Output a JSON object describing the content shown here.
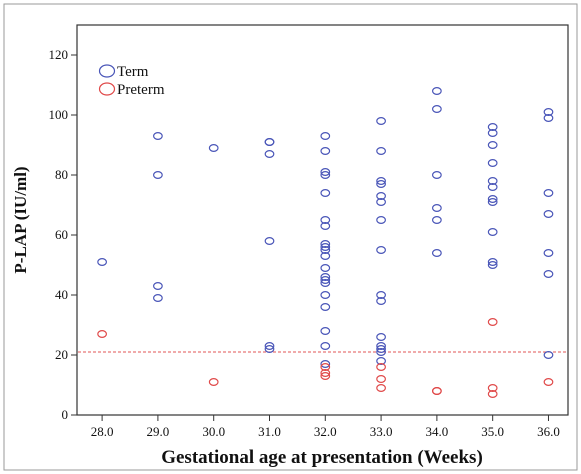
{
  "chart_data": {
    "type": "scatter",
    "title": "",
    "xlabel": "Gestational age at presentation (Weeks)",
    "ylabel": "P-LAP (IU/ml)",
    "x_ticks": [
      "28.0",
      "29.0",
      "30.0",
      "31.0",
      "32.0",
      "33.0",
      "34.0",
      "35.0",
      "36.0"
    ],
    "y_ticks": [
      "0",
      "20",
      "40",
      "60",
      "80",
      "100",
      "120"
    ],
    "xlim": [
      27.55,
      36.35
    ],
    "ylim": [
      0,
      130
    ],
    "grid": false,
    "legend_position": "top-left",
    "reference_line": {
      "y": 21,
      "color": "#e05555",
      "style": "dashed"
    },
    "series": [
      {
        "name": "Term",
        "color": "#4a56b8",
        "points": [
          [
            28,
            51
          ],
          [
            29,
            93
          ],
          [
            29,
            80
          ],
          [
            29,
            43
          ],
          [
            29,
            39
          ],
          [
            30,
            89
          ],
          [
            31,
            91
          ],
          [
            31,
            91
          ],
          [
            31,
            87
          ],
          [
            31,
            58
          ],
          [
            31,
            23
          ],
          [
            31,
            22
          ],
          [
            32,
            93
          ],
          [
            32,
            88
          ],
          [
            32,
            81
          ],
          [
            32,
            80
          ],
          [
            32,
            74
          ],
          [
            32,
            65
          ],
          [
            32,
            63
          ],
          [
            32,
            57
          ],
          [
            32,
            56
          ],
          [
            32,
            55
          ],
          [
            32,
            53
          ],
          [
            32,
            49
          ],
          [
            32,
            46
          ],
          [
            32,
            45
          ],
          [
            32,
            44
          ],
          [
            32,
            40
          ],
          [
            32,
            36
          ],
          [
            32,
            28
          ],
          [
            32,
            23
          ],
          [
            32,
            17
          ],
          [
            33,
            98
          ],
          [
            33,
            88
          ],
          [
            33,
            78
          ],
          [
            33,
            77
          ],
          [
            33,
            73
          ],
          [
            33,
            71
          ],
          [
            33,
            65
          ],
          [
            33,
            55
          ],
          [
            33,
            40
          ],
          [
            33,
            38
          ],
          [
            33,
            26
          ],
          [
            33,
            23
          ],
          [
            33,
            22
          ],
          [
            33,
            21
          ],
          [
            33,
            18
          ],
          [
            34,
            108
          ],
          [
            34,
            102
          ],
          [
            34,
            80
          ],
          [
            34,
            69
          ],
          [
            34,
            65
          ],
          [
            34,
            54
          ],
          [
            35,
            96
          ],
          [
            35,
            94
          ],
          [
            35,
            90
          ],
          [
            35,
            84
          ],
          [
            35,
            78
          ],
          [
            35,
            76
          ],
          [
            35,
            72
          ],
          [
            35,
            71
          ],
          [
            35,
            61
          ],
          [
            35,
            51
          ],
          [
            35,
            50
          ],
          [
            36,
            101
          ],
          [
            36,
            99
          ],
          [
            36,
            74
          ],
          [
            36,
            67
          ],
          [
            36,
            54
          ],
          [
            36,
            47
          ],
          [
            36,
            20
          ]
        ]
      },
      {
        "name": "Preterm",
        "color": "#e04a4a",
        "points": [
          [
            28,
            27
          ],
          [
            30,
            11
          ],
          [
            32,
            16
          ],
          [
            32,
            14
          ],
          [
            32,
            13
          ],
          [
            33,
            16
          ],
          [
            33,
            12
          ],
          [
            33,
            9
          ],
          [
            34,
            8
          ],
          [
            34,
            8
          ],
          [
            35,
            31
          ],
          [
            35,
            9
          ],
          [
            35,
            7
          ],
          [
            36,
            11
          ]
        ]
      }
    ]
  }
}
